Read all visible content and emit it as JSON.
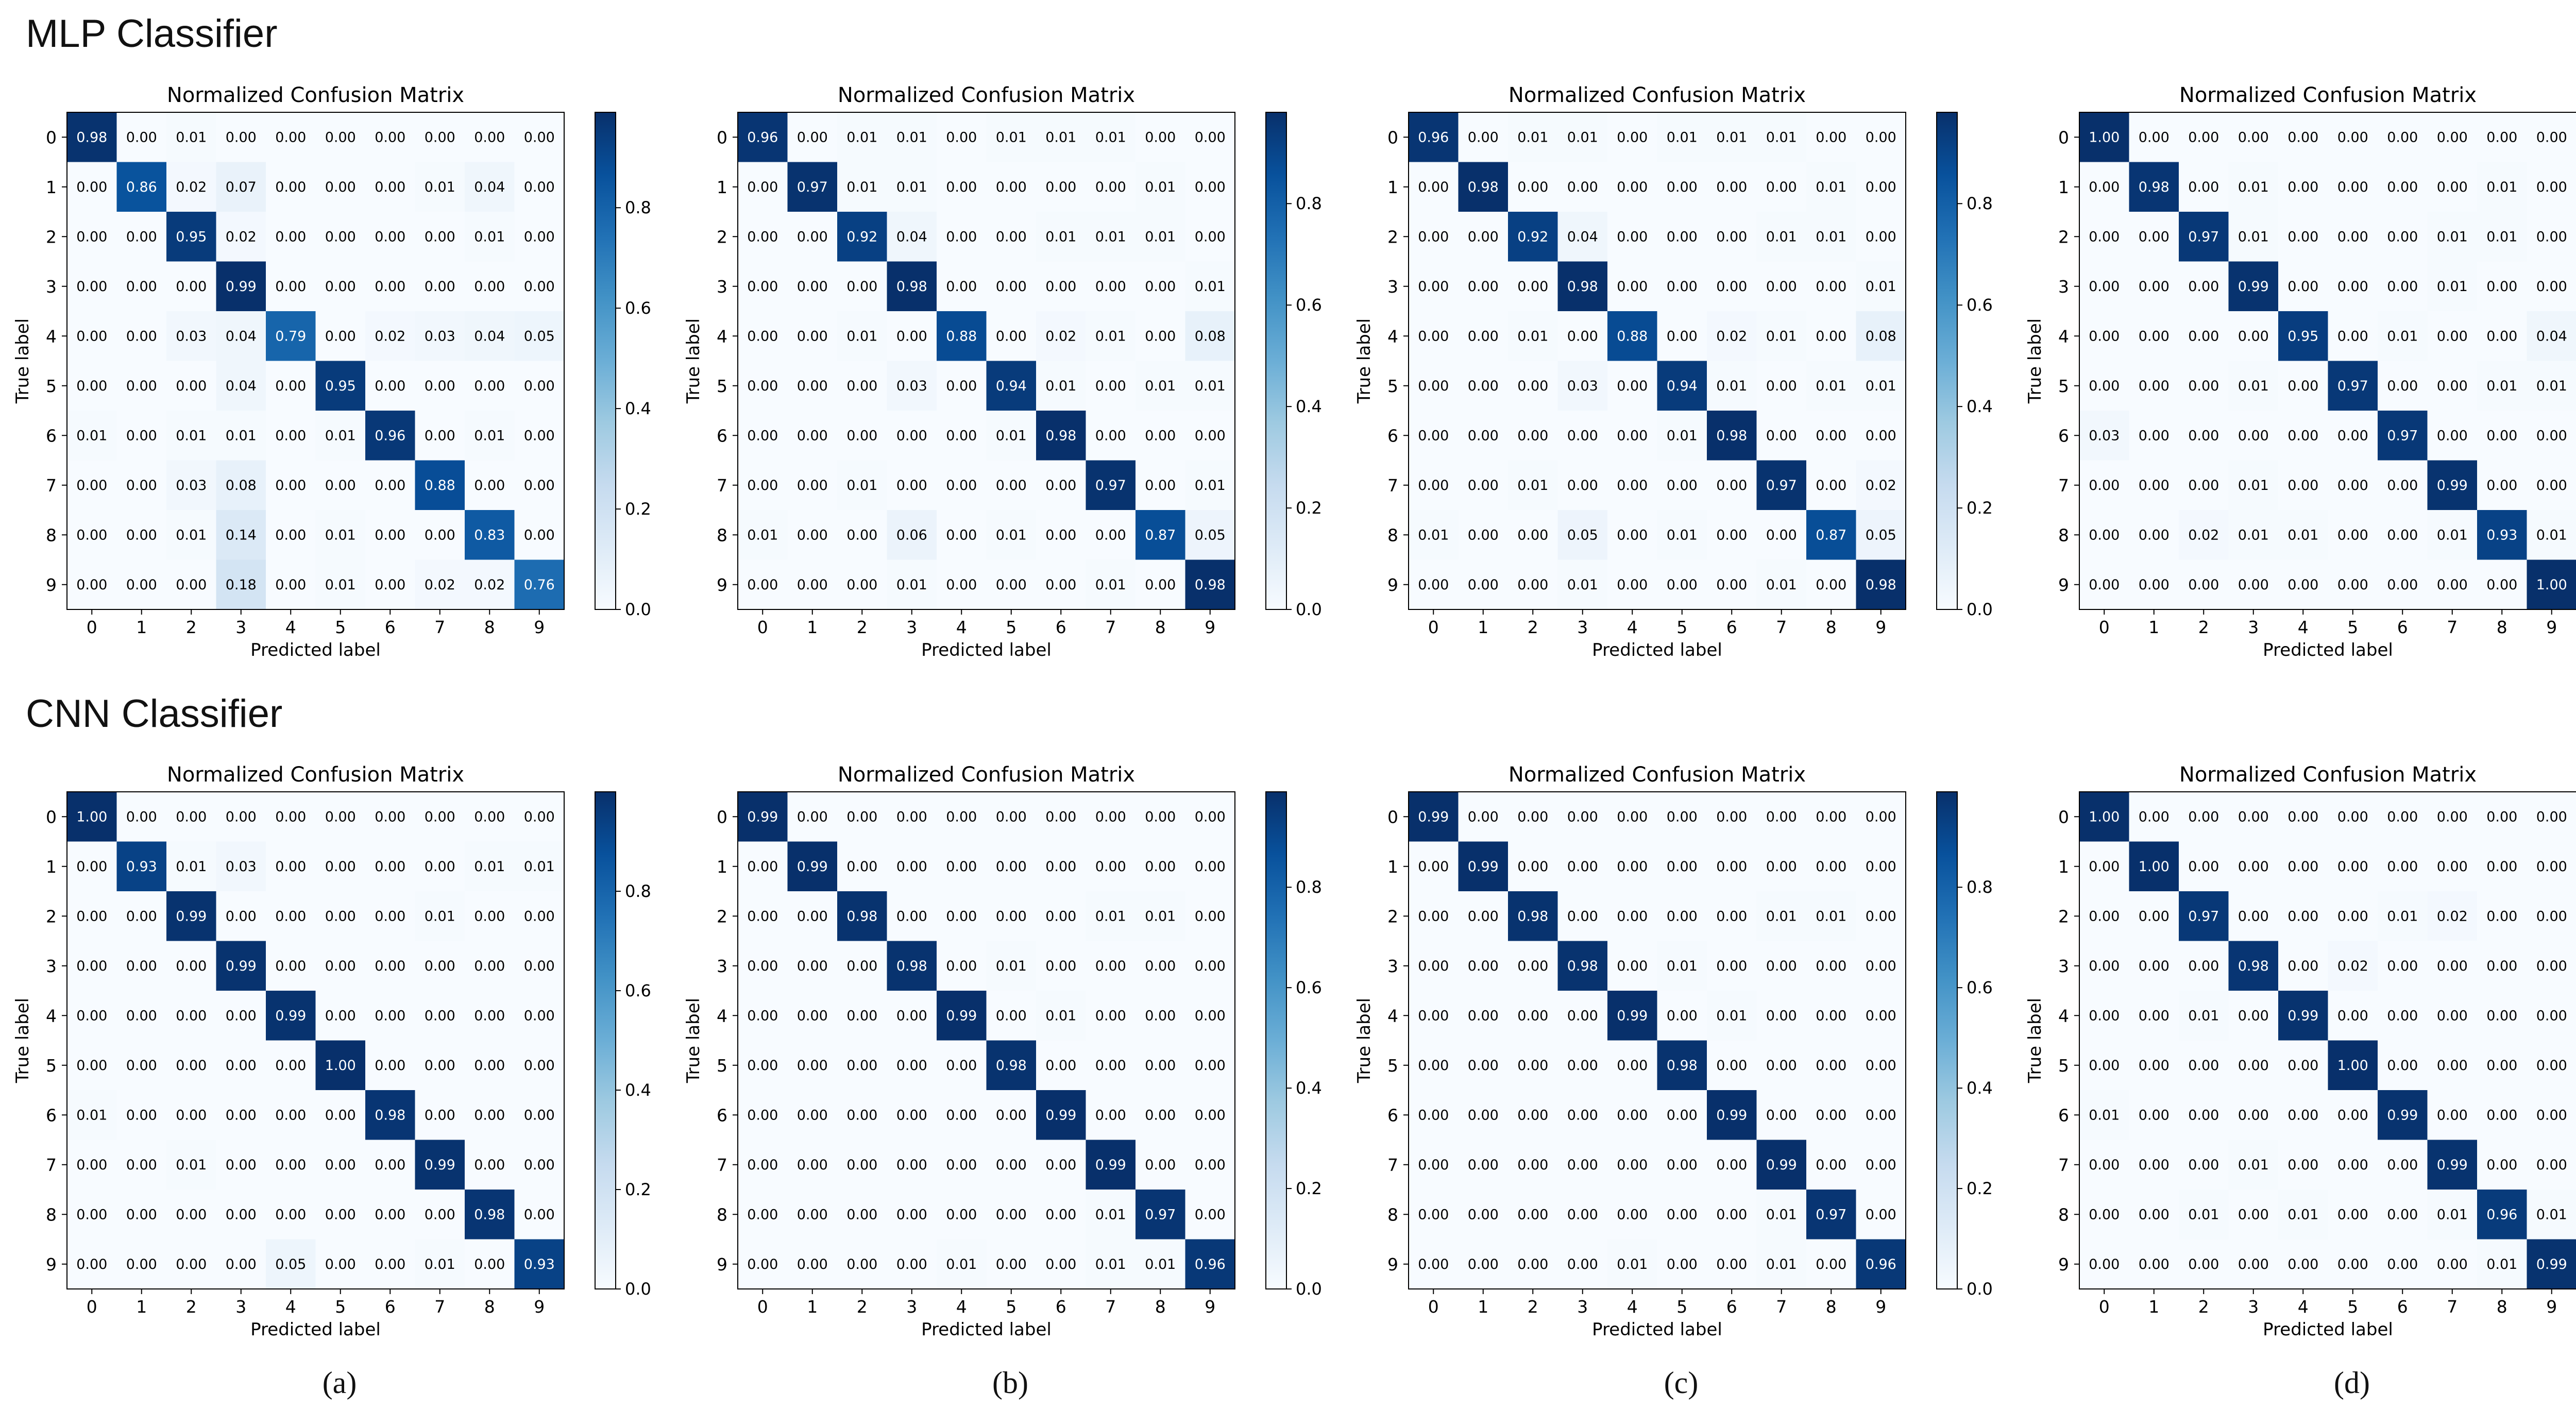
{
  "figure": {
    "rows": [
      {
        "heading": "MLP Classifier"
      },
      {
        "heading": "CNN Classifier"
      }
    ],
    "panel_captions": [
      "(a)",
      "(b)",
      "(c)",
      "(d)"
    ]
  },
  "colors": {
    "cmap_low": "#f7fbff",
    "cmap_high": "#08306b",
    "text_light": "#ffffff",
    "text_dark": "#000000"
  },
  "chart_data": [
    {
      "type": "heatmap",
      "title": "Normalized Confusion Matrix",
      "xlabel": "Predicted label",
      "ylabel": "True label",
      "x": [
        "0",
        "1",
        "2",
        "3",
        "4",
        "5",
        "6",
        "7",
        "8",
        "9"
      ],
      "y": [
        "0",
        "1",
        "2",
        "3",
        "4",
        "5",
        "6",
        "7",
        "8",
        "9"
      ],
      "colorbar": {
        "ticks": [
          "0.0",
          "0.2",
          "0.4",
          "0.6",
          "0.8"
        ],
        "vmin": 0,
        "vmax": 0.99
      },
      "values": [
        [
          0.98,
          0.0,
          0.01,
          0.0,
          0.0,
          0.0,
          0.0,
          0.0,
          0.0,
          0.0
        ],
        [
          0.0,
          0.86,
          0.02,
          0.07,
          0.0,
          0.0,
          0.0,
          0.01,
          0.04,
          0.0
        ],
        [
          0.0,
          0.0,
          0.95,
          0.02,
          0.0,
          0.0,
          0.0,
          0.0,
          0.01,
          0.0
        ],
        [
          0.0,
          0.0,
          0.0,
          0.99,
          0.0,
          0.0,
          0.0,
          0.0,
          0.0,
          0.0
        ],
        [
          0.0,
          0.0,
          0.03,
          0.04,
          0.79,
          0.0,
          0.02,
          0.03,
          0.04,
          0.05
        ],
        [
          0.0,
          0.0,
          0.0,
          0.04,
          0.0,
          0.95,
          0.0,
          0.0,
          0.0,
          0.0
        ],
        [
          0.01,
          0.0,
          0.01,
          0.01,
          0.0,
          0.01,
          0.96,
          0.0,
          0.01,
          0.0
        ],
        [
          0.0,
          0.0,
          0.03,
          0.08,
          0.0,
          0.0,
          0.0,
          0.88,
          0.0,
          0.0
        ],
        [
          0.0,
          0.0,
          0.01,
          0.14,
          0.0,
          0.01,
          0.0,
          0.0,
          0.83,
          0.0
        ],
        [
          0.0,
          0.0,
          0.0,
          0.18,
          0.0,
          0.01,
          0.0,
          0.02,
          0.02,
          0.76
        ]
      ]
    },
    {
      "type": "heatmap",
      "title": "Normalized Confusion Matrix",
      "xlabel": "Predicted label",
      "ylabel": "True label",
      "x": [
        "0",
        "1",
        "2",
        "3",
        "4",
        "5",
        "6",
        "7",
        "8",
        "9"
      ],
      "y": [
        "0",
        "1",
        "2",
        "3",
        "4",
        "5",
        "6",
        "7",
        "8",
        "9"
      ],
      "colorbar": {
        "ticks": [
          "0.0",
          "0.2",
          "0.4",
          "0.6",
          "0.8"
        ],
        "vmin": 0,
        "vmax": 0.98
      },
      "values": [
        [
          0.96,
          0.0,
          0.01,
          0.01,
          0.0,
          0.01,
          0.01,
          0.01,
          0.0,
          0.0
        ],
        [
          0.0,
          0.97,
          0.01,
          0.01,
          0.0,
          0.0,
          0.0,
          0.0,
          0.01,
          0.0
        ],
        [
          0.0,
          0.0,
          0.92,
          0.04,
          0.0,
          0.0,
          0.01,
          0.01,
          0.01,
          0.0
        ],
        [
          0.0,
          0.0,
          0.0,
          0.98,
          0.0,
          0.0,
          0.0,
          0.0,
          0.0,
          0.01
        ],
        [
          0.0,
          0.0,
          0.01,
          0.0,
          0.88,
          0.0,
          0.02,
          0.01,
          0.0,
          0.08
        ],
        [
          0.0,
          0.0,
          0.0,
          0.03,
          0.0,
          0.94,
          0.01,
          0.0,
          0.01,
          0.01
        ],
        [
          0.0,
          0.0,
          0.0,
          0.0,
          0.0,
          0.01,
          0.98,
          0.0,
          0.0,
          0.0
        ],
        [
          0.0,
          0.0,
          0.01,
          0.0,
          0.0,
          0.0,
          0.0,
          0.97,
          0.0,
          0.01
        ],
        [
          0.01,
          0.0,
          0.0,
          0.06,
          0.0,
          0.01,
          0.0,
          0.0,
          0.87,
          0.05
        ],
        [
          0.0,
          0.0,
          0.0,
          0.01,
          0.0,
          0.0,
          0.0,
          0.01,
          0.0,
          0.98
        ]
      ]
    },
    {
      "type": "heatmap",
      "title": "Normalized Confusion Matrix",
      "xlabel": "Predicted label",
      "ylabel": "True label",
      "x": [
        "0",
        "1",
        "2",
        "3",
        "4",
        "5",
        "6",
        "7",
        "8",
        "9"
      ],
      "y": [
        "0",
        "1",
        "2",
        "3",
        "4",
        "5",
        "6",
        "7",
        "8",
        "9"
      ],
      "colorbar": {
        "ticks": [
          "0.0",
          "0.2",
          "0.4",
          "0.6",
          "0.8"
        ],
        "vmin": 0,
        "vmax": 0.98
      },
      "values": [
        [
          0.96,
          0.0,
          0.01,
          0.01,
          0.0,
          0.01,
          0.01,
          0.01,
          0.0,
          0.0
        ],
        [
          0.0,
          0.98,
          0.0,
          0.0,
          0.0,
          0.0,
          0.0,
          0.0,
          0.01,
          0.0
        ],
        [
          0.0,
          0.0,
          0.92,
          0.04,
          0.0,
          0.0,
          0.0,
          0.01,
          0.01,
          0.0
        ],
        [
          0.0,
          0.0,
          0.0,
          0.98,
          0.0,
          0.0,
          0.0,
          0.0,
          0.0,
          0.01
        ],
        [
          0.0,
          0.0,
          0.01,
          0.0,
          0.88,
          0.0,
          0.02,
          0.01,
          0.0,
          0.08
        ],
        [
          0.0,
          0.0,
          0.0,
          0.03,
          0.0,
          0.94,
          0.01,
          0.0,
          0.01,
          0.01
        ],
        [
          0.0,
          0.0,
          0.0,
          0.0,
          0.0,
          0.01,
          0.98,
          0.0,
          0.0,
          0.0
        ],
        [
          0.0,
          0.0,
          0.01,
          0.0,
          0.0,
          0.0,
          0.0,
          0.97,
          0.0,
          0.02
        ],
        [
          0.01,
          0.0,
          0.0,
          0.05,
          0.0,
          0.01,
          0.0,
          0.0,
          0.87,
          0.05
        ],
        [
          0.0,
          0.0,
          0.0,
          0.01,
          0.0,
          0.0,
          0.0,
          0.01,
          0.0,
          0.98
        ]
      ]
    },
    {
      "type": "heatmap",
      "title": "Normalized Confusion Matrix",
      "xlabel": "Predicted label",
      "ylabel": "True label",
      "x": [
        "0",
        "1",
        "2",
        "3",
        "4",
        "5",
        "6",
        "7",
        "8",
        "9"
      ],
      "y": [
        "0",
        "1",
        "2",
        "3",
        "4",
        "5",
        "6",
        "7",
        "8",
        "9"
      ],
      "colorbar": {
        "ticks": [
          "0.0",
          "0.2",
          "0.4",
          "0.6",
          "0.8",
          "1.0"
        ],
        "vmin": 0,
        "vmax": 1.0
      },
      "values": [
        [
          1.0,
          0.0,
          0.0,
          0.0,
          0.0,
          0.0,
          0.0,
          0.0,
          0.0,
          0.0
        ],
        [
          0.0,
          0.98,
          0.0,
          0.01,
          0.0,
          0.0,
          0.0,
          0.0,
          0.01,
          0.0
        ],
        [
          0.0,
          0.0,
          0.97,
          0.01,
          0.0,
          0.0,
          0.0,
          0.01,
          0.01,
          0.0
        ],
        [
          0.0,
          0.0,
          0.0,
          0.99,
          0.0,
          0.0,
          0.0,
          0.01,
          0.0,
          0.0
        ],
        [
          0.0,
          0.0,
          0.0,
          0.0,
          0.95,
          0.0,
          0.01,
          0.0,
          0.0,
          0.04
        ],
        [
          0.0,
          0.0,
          0.0,
          0.01,
          0.0,
          0.97,
          0.0,
          0.0,
          0.01,
          0.01
        ],
        [
          0.03,
          0.0,
          0.0,
          0.0,
          0.0,
          0.0,
          0.97,
          0.0,
          0.0,
          0.0
        ],
        [
          0.0,
          0.0,
          0.0,
          0.01,
          0.0,
          0.0,
          0.0,
          0.99,
          0.0,
          0.0
        ],
        [
          0.0,
          0.0,
          0.02,
          0.01,
          0.01,
          0.0,
          0.0,
          0.01,
          0.93,
          0.01
        ],
        [
          0.0,
          0.0,
          0.0,
          0.0,
          0.0,
          0.0,
          0.0,
          0.0,
          0.0,
          1.0
        ]
      ]
    },
    {
      "type": "heatmap",
      "title": "Normalized Confusion Matrix",
      "xlabel": "Predicted label",
      "ylabel": "True label",
      "x": [
        "0",
        "1",
        "2",
        "3",
        "4",
        "5",
        "6",
        "7",
        "8",
        "9"
      ],
      "y": [
        "0",
        "1",
        "2",
        "3",
        "4",
        "5",
        "6",
        "7",
        "8",
        "9"
      ],
      "colorbar": {
        "ticks": [
          "0.0",
          "0.2",
          "0.4",
          "0.6",
          "0.8"
        ],
        "vmin": 0,
        "vmax": 1.0
      },
      "values": [
        [
          1.0,
          0.0,
          0.0,
          0.0,
          0.0,
          0.0,
          0.0,
          0.0,
          0.0,
          0.0
        ],
        [
          0.0,
          0.93,
          0.01,
          0.03,
          0.0,
          0.0,
          0.0,
          0.0,
          0.01,
          0.01
        ],
        [
          0.0,
          0.0,
          0.99,
          0.0,
          0.0,
          0.0,
          0.0,
          0.01,
          0.0,
          0.0
        ],
        [
          0.0,
          0.0,
          0.0,
          0.99,
          0.0,
          0.0,
          0.0,
          0.0,
          0.0,
          0.0
        ],
        [
          0.0,
          0.0,
          0.0,
          0.0,
          0.99,
          0.0,
          0.0,
          0.0,
          0.0,
          0.0
        ],
        [
          0.0,
          0.0,
          0.0,
          0.0,
          0.0,
          1.0,
          0.0,
          0.0,
          0.0,
          0.0
        ],
        [
          0.01,
          0.0,
          0.0,
          0.0,
          0.0,
          0.0,
          0.98,
          0.0,
          0.0,
          0.0
        ],
        [
          0.0,
          0.0,
          0.01,
          0.0,
          0.0,
          0.0,
          0.0,
          0.99,
          0.0,
          0.0
        ],
        [
          0.0,
          0.0,
          0.0,
          0.0,
          0.0,
          0.0,
          0.0,
          0.0,
          0.98,
          0.0
        ],
        [
          0.0,
          0.0,
          0.0,
          0.0,
          0.05,
          0.0,
          0.0,
          0.01,
          0.0,
          0.93
        ]
      ]
    },
    {
      "type": "heatmap",
      "title": "Normalized Confusion Matrix",
      "xlabel": "Predicted label",
      "ylabel": "True label",
      "x": [
        "0",
        "1",
        "2",
        "3",
        "4",
        "5",
        "6",
        "7",
        "8",
        "9"
      ],
      "y": [
        "0",
        "1",
        "2",
        "3",
        "4",
        "5",
        "6",
        "7",
        "8",
        "9"
      ],
      "colorbar": {
        "ticks": [
          "0.0",
          "0.2",
          "0.4",
          "0.6",
          "0.8"
        ],
        "vmin": 0,
        "vmax": 0.99
      },
      "values": [
        [
          0.99,
          0.0,
          0.0,
          0.0,
          0.0,
          0.0,
          0.0,
          0.0,
          0.0,
          0.0
        ],
        [
          0.0,
          0.99,
          0.0,
          0.0,
          0.0,
          0.0,
          0.0,
          0.0,
          0.0,
          0.0
        ],
        [
          0.0,
          0.0,
          0.98,
          0.0,
          0.0,
          0.0,
          0.0,
          0.01,
          0.01,
          0.0
        ],
        [
          0.0,
          0.0,
          0.0,
          0.98,
          0.0,
          0.01,
          0.0,
          0.0,
          0.0,
          0.0
        ],
        [
          0.0,
          0.0,
          0.0,
          0.0,
          0.99,
          0.0,
          0.01,
          0.0,
          0.0,
          0.0
        ],
        [
          0.0,
          0.0,
          0.0,
          0.0,
          0.0,
          0.98,
          0.0,
          0.0,
          0.0,
          0.0
        ],
        [
          0.0,
          0.0,
          0.0,
          0.0,
          0.0,
          0.0,
          0.99,
          0.0,
          0.0,
          0.0
        ],
        [
          0.0,
          0.0,
          0.0,
          0.0,
          0.0,
          0.0,
          0.0,
          0.99,
          0.0,
          0.0
        ],
        [
          0.0,
          0.0,
          0.0,
          0.0,
          0.0,
          0.0,
          0.0,
          0.01,
          0.97,
          0.0
        ],
        [
          0.0,
          0.0,
          0.0,
          0.0,
          0.01,
          0.0,
          0.0,
          0.01,
          0.01,
          0.96
        ]
      ]
    },
    {
      "type": "heatmap",
      "title": "Normalized Confusion Matrix",
      "xlabel": "Predicted label",
      "ylabel": "True label",
      "x": [
        "0",
        "1",
        "2",
        "3",
        "4",
        "5",
        "6",
        "7",
        "8",
        "9"
      ],
      "y": [
        "0",
        "1",
        "2",
        "3",
        "4",
        "5",
        "6",
        "7",
        "8",
        "9"
      ],
      "colorbar": {
        "ticks": [
          "0.0",
          "0.2",
          "0.4",
          "0.6",
          "0.8"
        ],
        "vmin": 0,
        "vmax": 0.99
      },
      "values": [
        [
          0.99,
          0.0,
          0.0,
          0.0,
          0.0,
          0.0,
          0.0,
          0.0,
          0.0,
          0.0
        ],
        [
          0.0,
          0.99,
          0.0,
          0.0,
          0.0,
          0.0,
          0.0,
          0.0,
          0.0,
          0.0
        ],
        [
          0.0,
          0.0,
          0.98,
          0.0,
          0.0,
          0.0,
          0.0,
          0.01,
          0.01,
          0.0
        ],
        [
          0.0,
          0.0,
          0.0,
          0.98,
          0.0,
          0.01,
          0.0,
          0.0,
          0.0,
          0.0
        ],
        [
          0.0,
          0.0,
          0.0,
          0.0,
          0.99,
          0.0,
          0.01,
          0.0,
          0.0,
          0.0
        ],
        [
          0.0,
          0.0,
          0.0,
          0.0,
          0.0,
          0.98,
          0.0,
          0.0,
          0.0,
          0.0
        ],
        [
          0.0,
          0.0,
          0.0,
          0.0,
          0.0,
          0.0,
          0.99,
          0.0,
          0.0,
          0.0
        ],
        [
          0.0,
          0.0,
          0.0,
          0.0,
          0.0,
          0.0,
          0.0,
          0.99,
          0.0,
          0.0
        ],
        [
          0.0,
          0.0,
          0.0,
          0.0,
          0.0,
          0.0,
          0.0,
          0.01,
          0.97,
          0.0
        ],
        [
          0.0,
          0.0,
          0.0,
          0.0,
          0.01,
          0.0,
          0.0,
          0.01,
          0.0,
          0.96
        ]
      ]
    },
    {
      "type": "heatmap",
      "title": "Normalized Confusion Matrix",
      "xlabel": "Predicted label",
      "ylabel": "True label",
      "x": [
        "0",
        "1",
        "2",
        "3",
        "4",
        "5",
        "6",
        "7",
        "8",
        "9"
      ],
      "y": [
        "0",
        "1",
        "2",
        "3",
        "4",
        "5",
        "6",
        "7",
        "8",
        "9"
      ],
      "colorbar": {
        "ticks": [
          "0.0",
          "0.2",
          "0.4",
          "0.6",
          "0.8",
          "1.0"
        ],
        "vmin": 0,
        "vmax": 1.0
      },
      "values": [
        [
          1.0,
          0.0,
          0.0,
          0.0,
          0.0,
          0.0,
          0.0,
          0.0,
          0.0,
          0.0
        ],
        [
          0.0,
          1.0,
          0.0,
          0.0,
          0.0,
          0.0,
          0.0,
          0.0,
          0.0,
          0.0
        ],
        [
          0.0,
          0.0,
          0.97,
          0.0,
          0.0,
          0.0,
          0.01,
          0.02,
          0.0,
          0.0
        ],
        [
          0.0,
          0.0,
          0.0,
          0.98,
          0.0,
          0.02,
          0.0,
          0.0,
          0.0,
          0.0
        ],
        [
          0.0,
          0.0,
          0.01,
          0.0,
          0.99,
          0.0,
          0.0,
          0.0,
          0.0,
          0.0
        ],
        [
          0.0,
          0.0,
          0.0,
          0.0,
          0.0,
          1.0,
          0.0,
          0.0,
          0.0,
          0.0
        ],
        [
          0.01,
          0.0,
          0.0,
          0.0,
          0.0,
          0.0,
          0.99,
          0.0,
          0.0,
          0.0
        ],
        [
          0.0,
          0.0,
          0.0,
          0.01,
          0.0,
          0.0,
          0.0,
          0.99,
          0.0,
          0.0
        ],
        [
          0.0,
          0.0,
          0.01,
          0.0,
          0.01,
          0.0,
          0.0,
          0.01,
          0.96,
          0.01
        ],
        [
          0.0,
          0.0,
          0.0,
          0.0,
          0.0,
          0.0,
          0.0,
          0.0,
          0.01,
          0.99
        ]
      ]
    }
  ]
}
